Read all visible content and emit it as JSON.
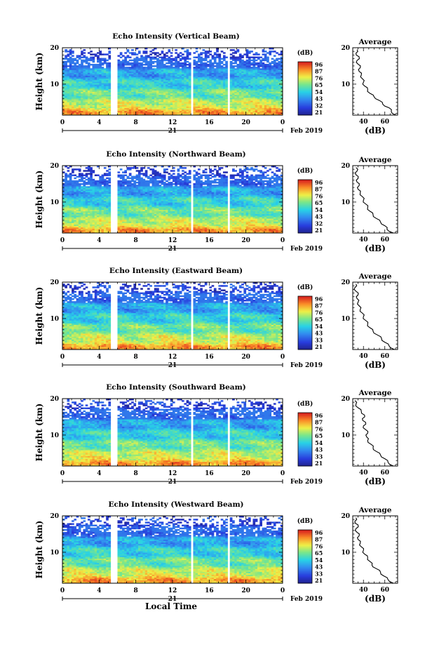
{
  "chart_data": [
    {
      "type": "heatmap",
      "title": "Echo Intensity (Vertical Beam)",
      "ylabel": "Height (km)",
      "xlabel": "",
      "x_ticks": [
        "0",
        "4",
        "8",
        "12",
        "16",
        "20",
        "0"
      ],
      "day_label": "21",
      "date_label": "Feb 2019",
      "ylim": [
        1.5,
        20
      ],
      "y_ticks": [
        "20",
        "10"
      ],
      "gaps_hours": [
        [
          5.3,
          5.9
        ],
        [
          13.9,
          14.3
        ],
        [
          17.9,
          18.3
        ]
      ],
      "colorbar": {
        "unit": "(dB)",
        "ticks": [
          "96",
          "87",
          "76",
          "65",
          "54",
          "43",
          "32",
          "21"
        ]
      },
      "average_profile": {
        "title": "Average",
        "xlabel": "(dB)",
        "x_ticks": [
          "40",
          "60"
        ],
        "xlim": [
          30,
          72
        ],
        "y_ticks": [
          "20",
          "10"
        ],
        "heights": [
          1.5,
          2.5,
          3.5,
          4.5,
          5.5,
          6.5,
          7.5,
          8.5,
          9.5,
          10.5,
          11.5,
          12.5,
          13.5,
          14.5,
          15.5,
          16.5,
          17.5,
          18.5,
          19.5
        ],
        "values": [
          70,
          66,
          64,
          58,
          55,
          50,
          46,
          44,
          41,
          40,
          39,
          38,
          36,
          37,
          35,
          34,
          36,
          33,
          34
        ]
      }
    },
    {
      "type": "heatmap",
      "title": "Echo Intensity (Northward Beam)",
      "ylabel": "Height (km)",
      "xlabel": "",
      "x_ticks": [
        "0",
        "4",
        "8",
        "12",
        "16",
        "20",
        "0"
      ],
      "day_label": "21",
      "date_label": "Feb 2019",
      "ylim": [
        1.5,
        20
      ],
      "y_ticks": [
        "20",
        "10"
      ],
      "gaps_hours": [
        [
          5.3,
          5.9
        ],
        [
          13.9,
          14.3
        ],
        [
          17.9,
          18.3
        ]
      ],
      "colorbar": {
        "unit": "(dB)",
        "ticks": [
          "96",
          "87",
          "76",
          "65",
          "54",
          "43",
          "32",
          "21"
        ]
      },
      "average_profile": {
        "title": "Average",
        "xlabel": "(dB)",
        "x_ticks": [
          "40",
          "60"
        ],
        "xlim": [
          30,
          72
        ],
        "y_ticks": [
          "20",
          "10"
        ],
        "heights": [
          1.5,
          2.5,
          3.5,
          4.5,
          5.5,
          6.5,
          7.5,
          8.5,
          9.5,
          10.5,
          11.5,
          12.5,
          13.5,
          14.5,
          15.5,
          16.5,
          17.5,
          18.5,
          19.5
        ],
        "values": [
          68,
          62,
          60,
          56,
          52,
          49,
          46,
          44,
          42,
          40,
          39,
          37,
          35,
          36,
          34,
          35,
          33,
          34,
          33
        ]
      }
    },
    {
      "type": "heatmap",
      "title": "Echo Intensity (Eastward Beam)",
      "ylabel": "Height (km)",
      "xlabel": "",
      "x_ticks": [
        "0",
        "4",
        "8",
        "12",
        "16",
        "20",
        "0"
      ],
      "day_label": "21",
      "date_label": "Feb 2019",
      "ylim": [
        1.5,
        20
      ],
      "y_ticks": [
        "20",
        "10"
      ],
      "gaps_hours": [
        [
          5.3,
          5.9
        ],
        [
          13.9,
          14.3
        ],
        [
          17.9,
          18.3
        ]
      ],
      "colorbar": {
        "unit": "(dB)",
        "ticks": [
          "96",
          "87",
          "76",
          "65",
          "54",
          "43",
          "33",
          "21"
        ]
      },
      "average_profile": {
        "title": "Average",
        "xlabel": "(dB)",
        "x_ticks": [
          "40",
          "60"
        ],
        "xlim": [
          30,
          72
        ],
        "y_ticks": [
          "20",
          "10"
        ],
        "heights": [
          1.5,
          2.5,
          3.5,
          4.5,
          5.5,
          6.5,
          7.5,
          8.5,
          9.5,
          10.5,
          11.5,
          12.5,
          13.5,
          14.5,
          15.5,
          16.5,
          17.5,
          18.5,
          19.5
        ],
        "values": [
          69,
          64,
          60,
          57,
          53,
          49,
          46,
          44,
          42,
          40,
          39,
          37,
          36,
          35,
          34,
          35,
          33,
          32,
          33
        ]
      }
    },
    {
      "type": "heatmap",
      "title": "Echo Intensity (Southward Beam)",
      "ylabel": "Height (km)",
      "xlabel": "",
      "x_ticks": [
        "0",
        "4",
        "8",
        "12",
        "16",
        "20",
        "0"
      ],
      "day_label": "21",
      "date_label": "Feb 2019",
      "ylim": [
        1.5,
        20
      ],
      "y_ticks": [
        "20",
        "10"
      ],
      "gaps_hours": [
        [
          5.3,
          5.9
        ],
        [
          13.9,
          14.3
        ],
        [
          17.9,
          18.3
        ]
      ],
      "colorbar": {
        "unit": "(dB)",
        "ticks": [
          "96",
          "87",
          "76",
          "65",
          "54",
          "43",
          "33",
          "21"
        ]
      },
      "average_profile": {
        "title": "Average",
        "xlabel": "(dB)",
        "x_ticks": [
          "40",
          "60"
        ],
        "xlim": [
          30,
          72
        ],
        "y_ticks": [
          "20",
          "10"
        ],
        "heights": [
          1.5,
          2.5,
          3.5,
          4.5,
          5.5,
          6.5,
          7.5,
          8.5,
          9.5,
          10.5,
          11.5,
          12.5,
          13.5,
          14.5,
          15.5,
          16.5,
          17.5,
          18.5,
          19.5
        ],
        "values": [
          68,
          63,
          60,
          56,
          52,
          49,
          47,
          44,
          43,
          44,
          42,
          40,
          42,
          39,
          41,
          38,
          35,
          33,
          32
        ]
      }
    },
    {
      "type": "heatmap",
      "title": "Echo Intensity (Westward Beam)",
      "ylabel": "Height (km)",
      "xlabel": "Local Time",
      "x_ticks": [
        "0",
        "4",
        "8",
        "12",
        "16",
        "20",
        "0"
      ],
      "day_label": "21",
      "date_label": "Feb 2019",
      "ylim": [
        1.5,
        20
      ],
      "y_ticks": [
        "20",
        "10"
      ],
      "gaps_hours": [
        [
          5.3,
          5.9
        ],
        [
          13.9,
          14.3
        ],
        [
          17.9,
          18.3
        ]
      ],
      "colorbar": {
        "unit": "(dB)",
        "ticks": [
          "96",
          "87",
          "76",
          "65",
          "54",
          "43",
          "33",
          "21"
        ]
      },
      "average_profile": {
        "title": "Average",
        "xlabel": "(dB)",
        "x_ticks": [
          "40",
          "60"
        ],
        "xlim": [
          30,
          72
        ],
        "y_ticks": [
          "20",
          "10"
        ],
        "heights": [
          1.5,
          2.5,
          3.5,
          4.5,
          5.5,
          6.5,
          7.5,
          8.5,
          9.5,
          10.5,
          11.5,
          12.5,
          13.5,
          14.5,
          15.5,
          16.5,
          17.5,
          18.5,
          19.5
        ],
        "values": [
          68,
          63,
          59,
          56,
          52,
          48,
          46,
          44,
          41,
          40,
          38,
          37,
          35,
          36,
          34,
          33,
          35,
          32,
          33
        ]
      }
    }
  ]
}
